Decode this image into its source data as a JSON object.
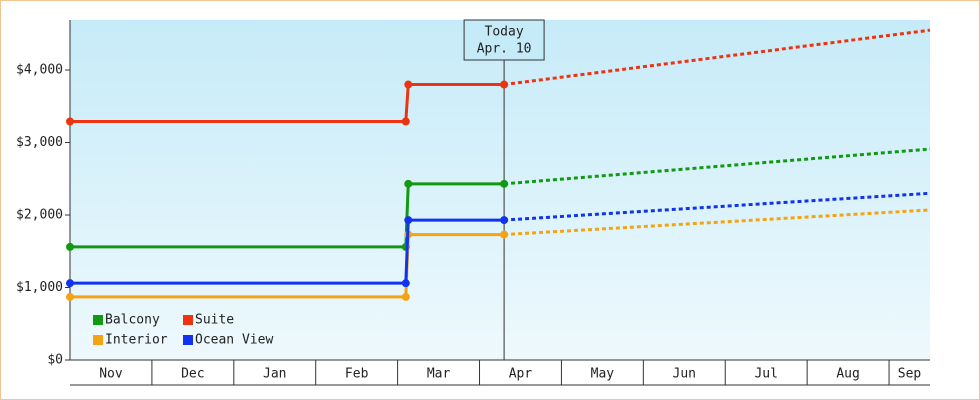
{
  "chart_data": {
    "type": "line",
    "ylim": [
      0,
      4690
    ],
    "yticks": [
      {
        "value": 0,
        "label": "$0"
      },
      {
        "value": 1000,
        "label": "$1,000"
      },
      {
        "value": 2000,
        "label": "$2,000"
      },
      {
        "value": 3000,
        "label": "$3,000"
      },
      {
        "value": 4000,
        "label": "$4,000"
      }
    ],
    "xlim": [
      0,
      10.5
    ],
    "xticks": [
      {
        "value": 0,
        "label": "Nov"
      },
      {
        "value": 1,
        "label": "Dec"
      },
      {
        "value": 2,
        "label": "Jan"
      },
      {
        "value": 3,
        "label": "Feb"
      },
      {
        "value": 4,
        "label": "Mar"
      },
      {
        "value": 5,
        "label": "Apr"
      },
      {
        "value": 6,
        "label": "May"
      },
      {
        "value": 7,
        "label": "Jun"
      },
      {
        "value": 8,
        "label": "Jul"
      },
      {
        "value": 9,
        "label": "Aug"
      },
      {
        "value": 10,
        "label": "Sep"
      }
    ],
    "annotation": {
      "x": 5.3,
      "lines": [
        "Today",
        "Apr. 10"
      ]
    },
    "legend": "bottom-left",
    "series": [
      {
        "name": "Balcony",
        "color": "#119911",
        "x": [
          0,
          4.1,
          4.13,
          5.3
        ],
        "values": [
          1560,
          1560,
          2430,
          2430
        ],
        "forecast_x": [
          5.3,
          10.5
        ],
        "forecast_values": [
          2430,
          2910
        ]
      },
      {
        "name": "Suite",
        "color": "#ee3311",
        "x": [
          0,
          4.1,
          4.13,
          5.3
        ],
        "values": [
          3290,
          3290,
          3800,
          3800
        ],
        "forecast_x": [
          5.3,
          10.5
        ],
        "forecast_values": [
          3800,
          4550
        ]
      },
      {
        "name": "Interior",
        "color": "#f5a311",
        "x": [
          0,
          4.1,
          4.13,
          5.3
        ],
        "values": [
          870,
          870,
          1730,
          1730
        ],
        "forecast_x": [
          5.3,
          10.5
        ],
        "forecast_values": [
          1730,
          2070
        ]
      },
      {
        "name": "Ocean View",
        "color": "#1133ee",
        "x": [
          0,
          4.1,
          4.13,
          5.3
        ],
        "values": [
          1060,
          1060,
          1930,
          1930
        ],
        "forecast_x": [
          5.3,
          10.5
        ],
        "forecast_values": [
          1930,
          2300
        ]
      }
    ]
  }
}
